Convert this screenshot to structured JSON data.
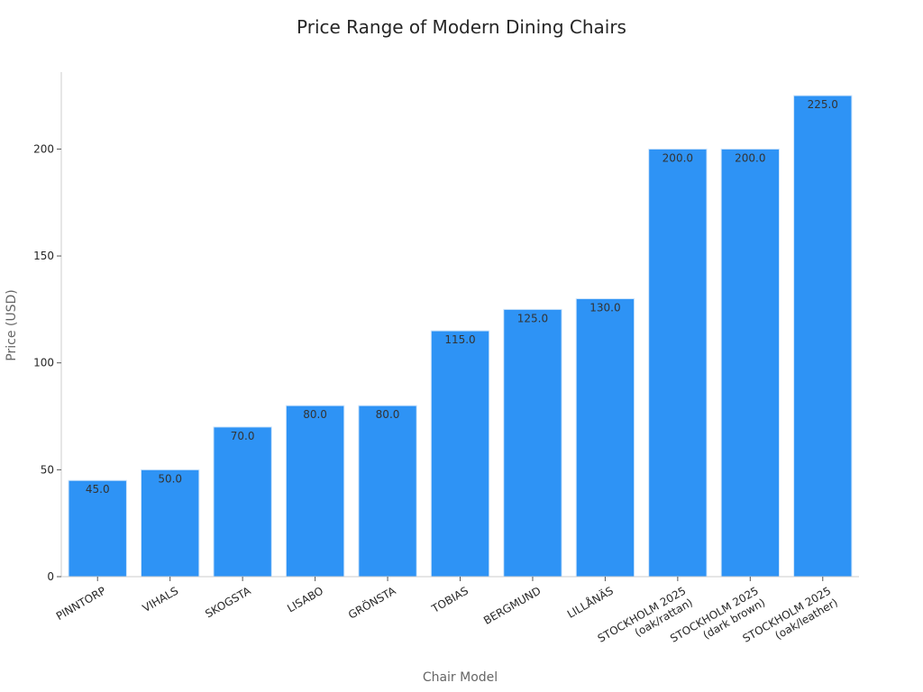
{
  "chart_data": {
    "type": "bar",
    "title": "Price Range of Modern Dining Chairs",
    "xlabel": "Chair Model",
    "ylabel": "Price (USD)",
    "categories": [
      [
        "PINNTORP"
      ],
      [
        "VIHALS"
      ],
      [
        "SKOGSTA"
      ],
      [
        "LISABO"
      ],
      [
        "GRÖNSTA"
      ],
      [
        "TOBIAS"
      ],
      [
        "BERGMUND"
      ],
      [
        "LILLÅNÄS"
      ],
      [
        "STOCKHOLM 2025",
        "(oak/rattan)"
      ],
      [
        "STOCKHOLM 2025",
        "(dark brown)"
      ],
      [
        "STOCKHOLM 2025",
        "(oak/leather)"
      ]
    ],
    "values": [
      45.0,
      50.0,
      70.0,
      80.0,
      80.0,
      115.0,
      125.0,
      130.0,
      200.0,
      200.0,
      225.0
    ],
    "data_labels": [
      "45.0",
      "50.0",
      "70.0",
      "80.0",
      "80.0",
      "115.0",
      "125.0",
      "130.0",
      "200.0",
      "200.0",
      "225.0"
    ],
    "yticks": [
      0,
      50,
      100,
      150,
      200
    ],
    "ylim": [
      0,
      236
    ],
    "grid": false,
    "bar_color": "#2e93f5",
    "bar_edge_color": "#cfe5fb"
  }
}
